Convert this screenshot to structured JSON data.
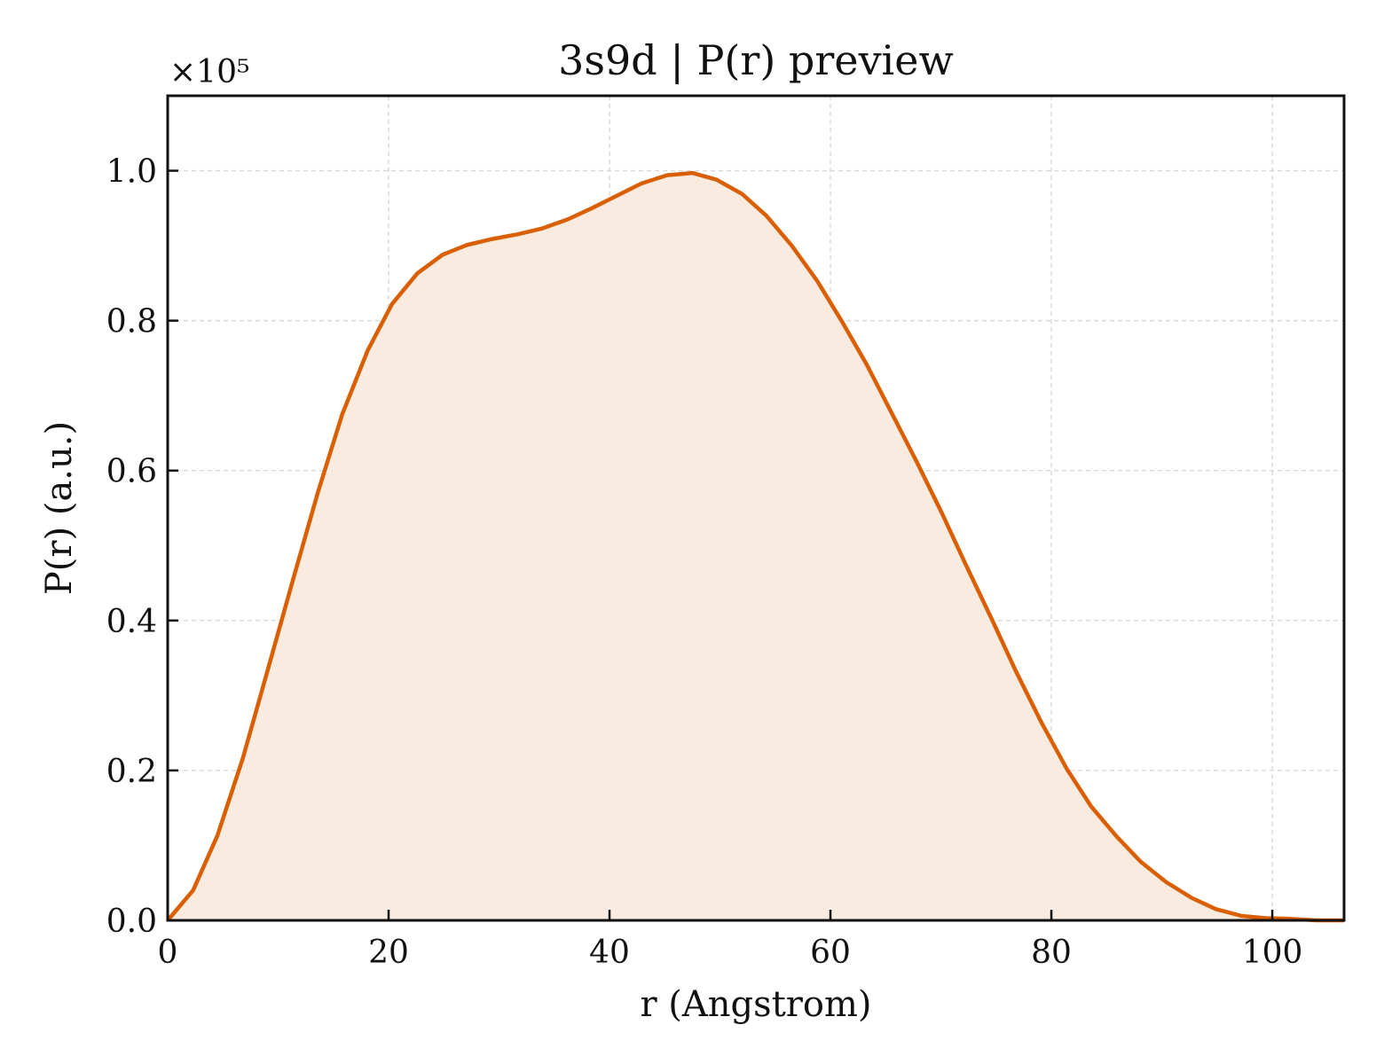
{
  "chart_data": {
    "type": "area",
    "title": "3s9d | P(r) preview",
    "xlabel": "r (Angstrom)",
    "ylabel": "P(r) (a.u.)",
    "y_offset_label": "×10⁵",
    "xlim": [
      0,
      106.5
    ],
    "ylim": [
      0,
      1.1
    ],
    "x_ticks": [
      0,
      20,
      40,
      60,
      80,
      100
    ],
    "x_tick_labels": [
      "0",
      "20",
      "40",
      "60",
      "80",
      "100"
    ],
    "y_ticks": [
      0,
      0.2,
      0.4,
      0.6,
      0.8,
      1.0
    ],
    "y_tick_labels": [
      "0.0",
      "0.2",
      "0.4",
      "0.6",
      "0.8",
      "1.0"
    ],
    "grid": true,
    "line_color": "#d95f02",
    "fill_color": "#f9ebe0",
    "series": [
      {
        "x": [
          0,
          2.3,
          4.5,
          6.8,
          9.0,
          11.3,
          13.6,
          15.8,
          18.1,
          20.3,
          22.6,
          24.9,
          27.1,
          29.4,
          31.6,
          33.9,
          36.2,
          38.4,
          40.7,
          42.9,
          45.2,
          47.5,
          49.7,
          52.0,
          54.2,
          56.5,
          58.8,
          61.0,
          63.3,
          65.5,
          67.8,
          70.1,
          72.3,
          74.6,
          76.8,
          79.1,
          81.4,
          83.6,
          85.9,
          88.1,
          90.4,
          92.7,
          94.9,
          97.2,
          99.4,
          101.7,
          104.0,
          106.5
        ],
        "y": [
          0.0,
          0.04,
          0.113,
          0.216,
          0.331,
          0.452,
          0.571,
          0.675,
          0.76,
          0.822,
          0.863,
          0.888,
          0.901,
          0.909,
          0.915,
          0.923,
          0.935,
          0.95,
          0.967,
          0.983,
          0.994,
          0.997,
          0.988,
          0.969,
          0.94,
          0.9,
          0.853,
          0.8,
          0.741,
          0.678,
          0.612,
          0.543,
          0.473,
          0.402,
          0.332,
          0.264,
          0.202,
          0.152,
          0.112,
          0.078,
          0.051,
          0.03,
          0.015,
          0.006,
          0.003,
          0.002,
          0.0,
          0.0
        ]
      }
    ]
  }
}
